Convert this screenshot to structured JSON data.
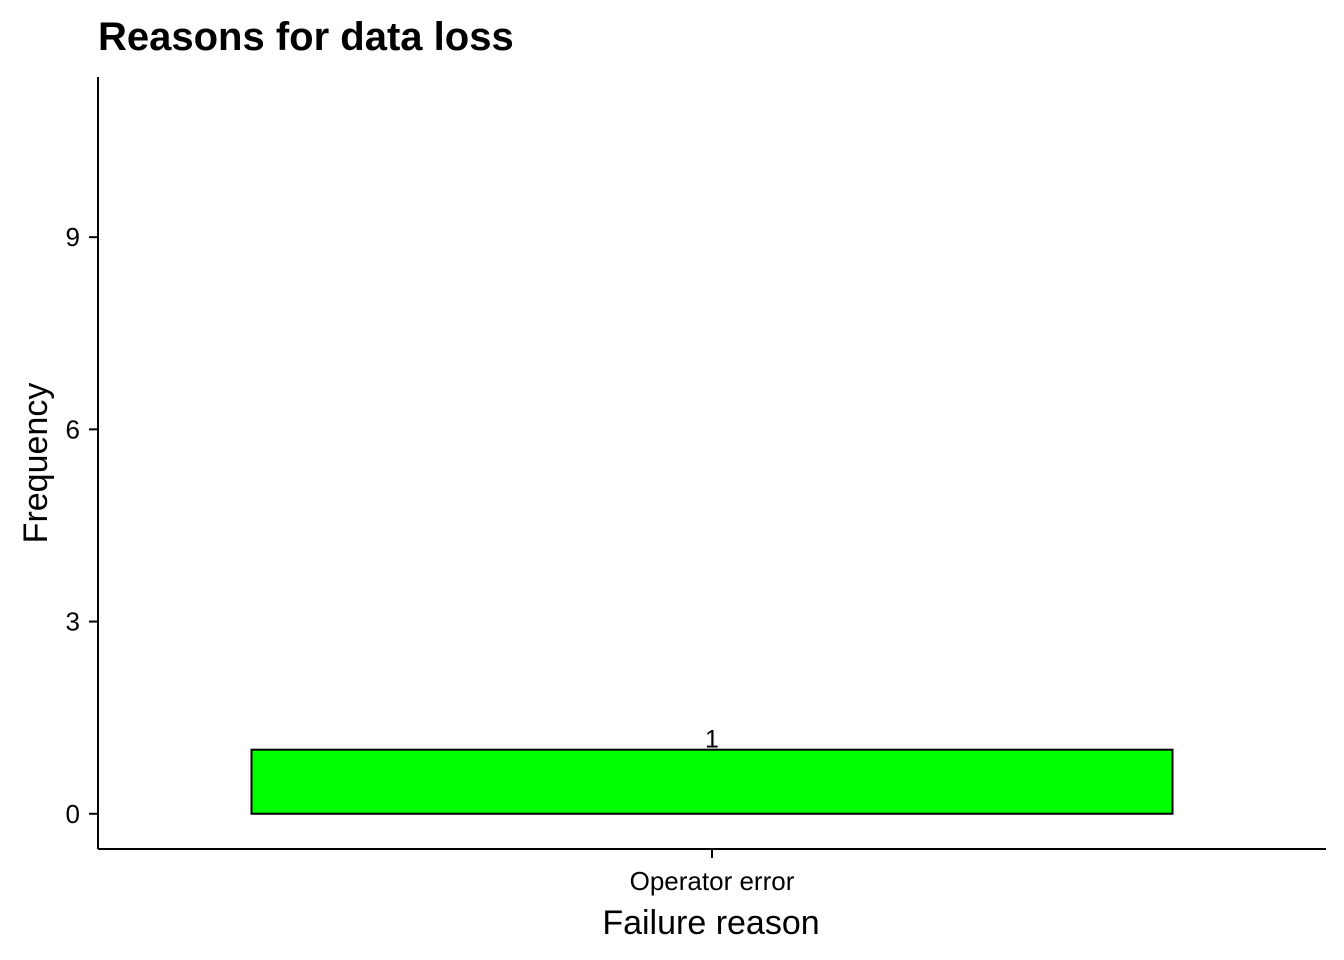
{
  "chart_data": {
    "type": "bar",
    "title": "Reasons for data loss",
    "xlabel": "Failure reason",
    "ylabel": "Frequency",
    "categories": [
      "Operator error"
    ],
    "values": [
      1
    ],
    "data_labels": [
      "1"
    ],
    "ylim": [
      -0.55,
      11.5
    ],
    "yticks": [
      0,
      3,
      6,
      9
    ],
    "bar_color": "#00ff00",
    "bar_border_color": "#000000",
    "grid": false,
    "legend": "none"
  }
}
